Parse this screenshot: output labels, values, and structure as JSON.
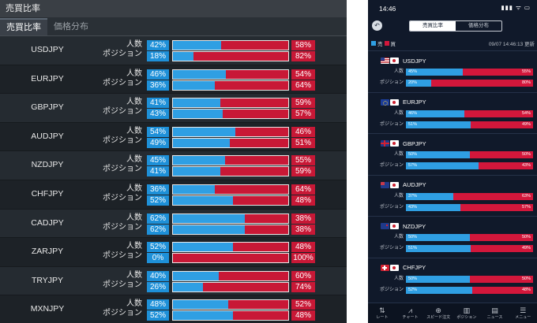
{
  "desktop": {
    "title": "売買比率",
    "tabs": [
      {
        "label": "売買比率",
        "active": true
      },
      {
        "label": "価格分布",
        "active": false
      }
    ],
    "row_labels": {
      "people": "人数",
      "position": "ポジション"
    },
    "rows": [
      {
        "pair": "USDJPY",
        "people_buy": "42%",
        "people_sell": "58%",
        "people_buy_value": 42,
        "position_buy": "18%",
        "position_sell": "82%",
        "position_buy_value": 18
      },
      {
        "pair": "EURJPY",
        "people_buy": "46%",
        "people_sell": "54%",
        "people_buy_value": 46,
        "position_buy": "36%",
        "position_sell": "64%",
        "position_buy_value": 36
      },
      {
        "pair": "GBPJPY",
        "people_buy": "41%",
        "people_sell": "59%",
        "people_buy_value": 41,
        "position_buy": "43%",
        "position_sell": "57%",
        "position_buy_value": 43
      },
      {
        "pair": "AUDJPY",
        "people_buy": "54%",
        "people_sell": "46%",
        "people_buy_value": 54,
        "position_buy": "49%",
        "position_sell": "51%",
        "position_buy_value": 49
      },
      {
        "pair": "NZDJPY",
        "people_buy": "45%",
        "people_sell": "55%",
        "people_buy_value": 45,
        "position_buy": "41%",
        "position_sell": "59%",
        "position_buy_value": 41
      },
      {
        "pair": "CHFJPY",
        "people_buy": "36%",
        "people_sell": "64%",
        "people_buy_value": 36,
        "position_buy": "52%",
        "position_sell": "48%",
        "position_buy_value": 52
      },
      {
        "pair": "CADJPY",
        "people_buy": "62%",
        "people_sell": "38%",
        "people_buy_value": 62,
        "position_buy": "62%",
        "position_sell": "38%",
        "position_buy_value": 62
      },
      {
        "pair": "ZARJPY",
        "people_buy": "52%",
        "people_sell": "48%",
        "people_buy_value": 52,
        "position_buy": "0%",
        "position_sell": "100%",
        "position_buy_value": 0
      },
      {
        "pair": "TRYJPY",
        "people_buy": "40%",
        "people_sell": "60%",
        "people_buy_value": 40,
        "position_buy": "26%",
        "position_sell": "74%",
        "position_buy_value": 26
      },
      {
        "pair": "MXNJPY",
        "people_buy": "48%",
        "people_sell": "52%",
        "people_buy_value": 48,
        "position_buy": "52%",
        "position_sell": "48%",
        "position_buy_value": 52
      }
    ]
  },
  "mobile": {
    "status_time": "14:46",
    "status_icons": "▮▮▮ ᯤ ▭",
    "back_icon": "back-arrow-icon",
    "back_glyph": "↶",
    "segments": [
      {
        "label": "売買比率",
        "active": true
      },
      {
        "label": "価格分布",
        "active": false
      }
    ],
    "legend": {
      "buy": "売",
      "sell": "買"
    },
    "timestamp": "09/07 14:46:13 更新",
    "row_labels": {
      "people": "人数",
      "position": "ポジション"
    },
    "pairs": [
      {
        "pair": "USDJPY",
        "flag": "us",
        "people_buy": "45%",
        "people_sell": "55%",
        "people_buy_value": 45,
        "position_buy": "20%",
        "position_sell": "80%",
        "position_buy_value": 20
      },
      {
        "pair": "EURJPY",
        "flag": "eu",
        "people_buy": "46%",
        "people_sell": "54%",
        "people_buy_value": 46,
        "position_buy": "51%",
        "position_sell": "49%",
        "position_buy_value": 51
      },
      {
        "pair": "GBPJPY",
        "flag": "gb",
        "people_buy": "50%",
        "people_sell": "50%",
        "people_buy_value": 50,
        "position_buy": "57%",
        "position_sell": "43%",
        "position_buy_value": 57
      },
      {
        "pair": "AUDJPY",
        "flag": "au",
        "people_buy": "37%",
        "people_sell": "63%",
        "people_buy_value": 37,
        "position_buy": "43%",
        "position_sell": "57%",
        "position_buy_value": 43
      },
      {
        "pair": "NZDJPY",
        "flag": "nz",
        "people_buy": "50%",
        "people_sell": "50%",
        "people_buy_value": 50,
        "position_buy": "51%",
        "position_sell": "49%",
        "position_buy_value": 51
      },
      {
        "pair": "CHFJPY",
        "flag": "ch",
        "people_buy": "50%",
        "people_sell": "50%",
        "people_buy_value": 50,
        "position_buy": "52%",
        "position_sell": "48%",
        "position_buy_value": 52
      }
    ],
    "nav": [
      {
        "label": "レート",
        "icon": "rate-icon",
        "glyph": "⇅"
      },
      {
        "label": "チャート",
        "icon": "chart-icon",
        "glyph": "⩘"
      },
      {
        "label": "スピード注文",
        "icon": "speed-order-icon",
        "glyph": "⊕"
      },
      {
        "label": "ポジション",
        "icon": "position-icon",
        "glyph": "▥"
      },
      {
        "label": "ニュース",
        "icon": "news-icon",
        "glyph": "▤"
      },
      {
        "label": "メニュー",
        "icon": "menu-icon",
        "glyph": "☰"
      }
    ]
  },
  "colors": {
    "buy": "#2f9fe3",
    "sell": "#d3173b"
  }
}
